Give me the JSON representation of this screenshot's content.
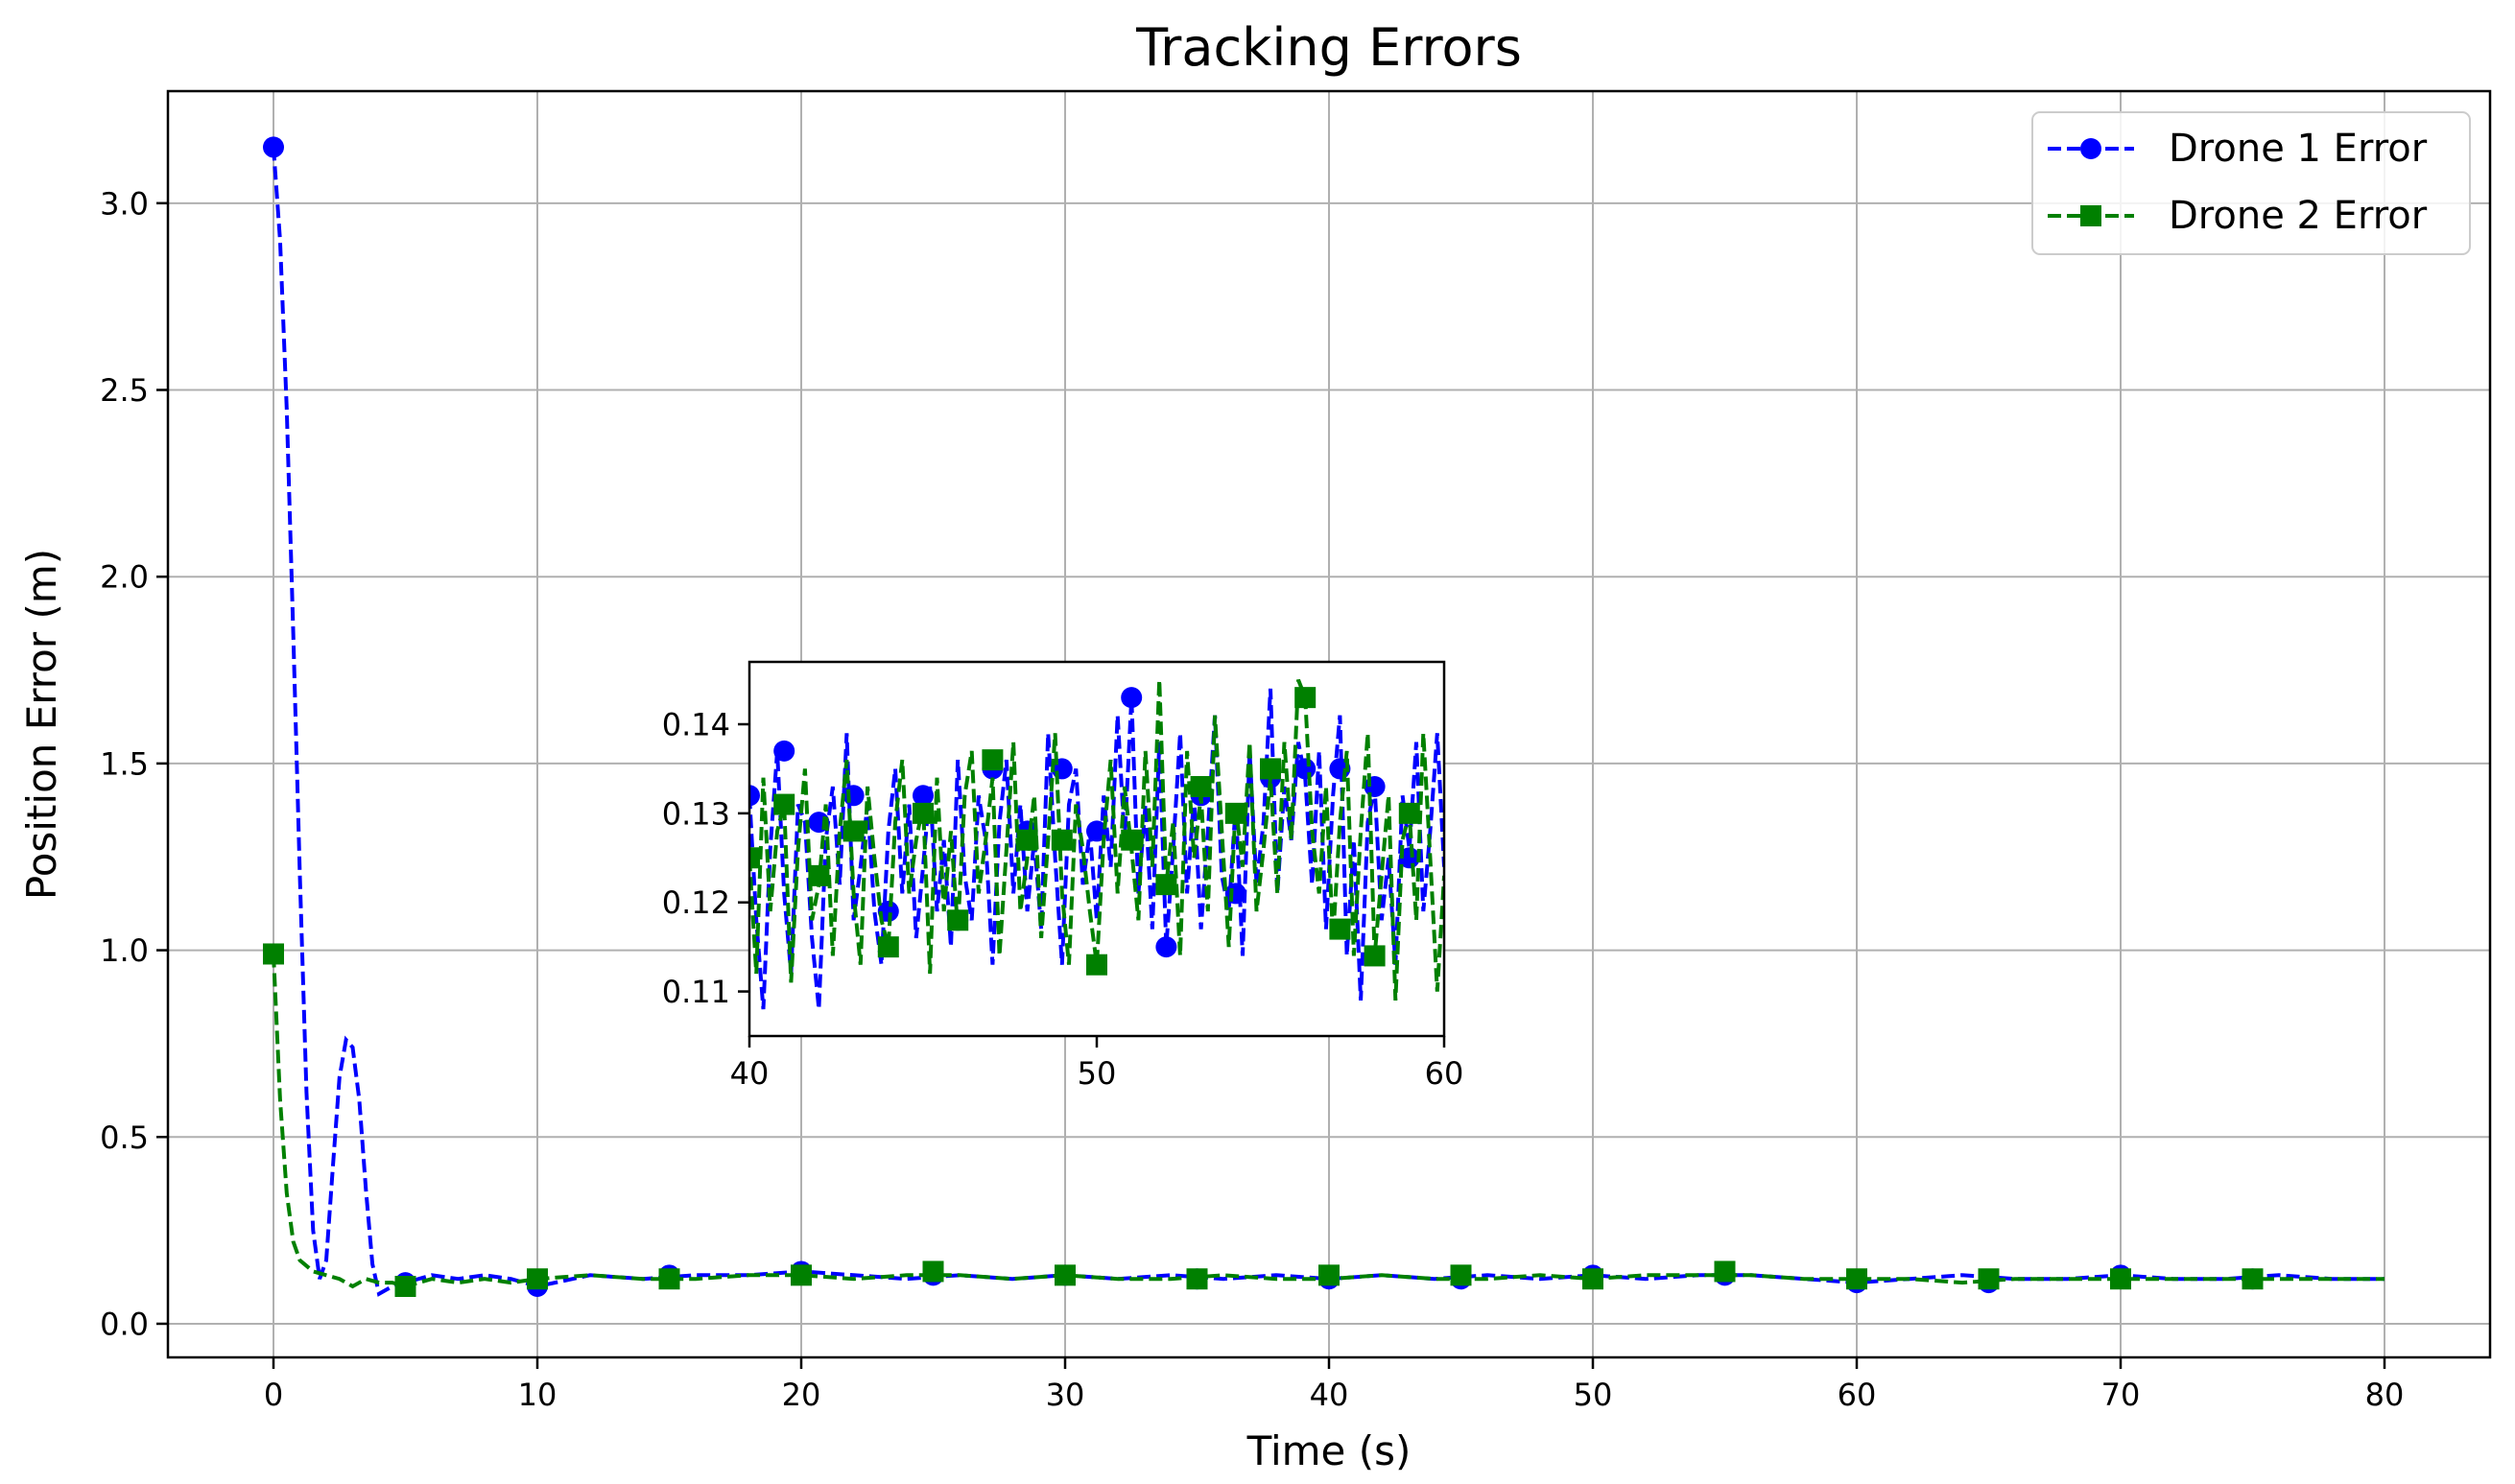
{
  "chart_data": {
    "type": "line",
    "title": "Tracking Errors",
    "xlabel": "Time (s)",
    "ylabel": "Position Error (m)",
    "xlim": [
      -4,
      84
    ],
    "ylim": [
      -0.09,
      3.3
    ],
    "xticks": [
      0,
      10,
      20,
      30,
      40,
      50,
      60,
      70,
      80
    ],
    "yticks": [
      0.0,
      0.5,
      1.0,
      1.5,
      2.0,
      2.5,
      3.0
    ],
    "xtick_labels": [
      "0",
      "10",
      "20",
      "30",
      "40",
      "50",
      "60",
      "70",
      "80"
    ],
    "ytick_labels": [
      "0.0",
      "0.5",
      "1.0",
      "1.5",
      "2.0",
      "2.5",
      "3.0"
    ],
    "grid": true,
    "legend_position": "top-right",
    "series": [
      {
        "name": "Drone 1 Error",
        "color": "#0000ff",
        "linestyle": "dashed",
        "marker": "circle",
        "x": [
          0,
          0.25,
          0.5,
          0.75,
          1.0,
          1.25,
          1.5,
          1.75,
          2.0,
          2.25,
          2.5,
          2.75,
          3.0,
          3.25,
          3.5,
          3.75,
          4.0,
          4.25,
          4.5,
          5,
          6,
          7,
          8,
          9,
          10,
          12,
          14,
          16,
          18,
          20,
          22,
          24,
          26,
          28,
          30,
          32,
          34,
          36,
          38,
          40,
          42,
          44,
          46,
          48,
          50,
          52,
          54,
          56,
          58,
          60,
          62,
          64,
          66,
          68,
          70,
          72,
          74,
          76,
          78,
          80
        ],
        "y": [
          3.15,
          2.9,
          2.45,
          1.85,
          1.2,
          0.62,
          0.25,
          0.12,
          0.17,
          0.42,
          0.66,
          0.76,
          0.74,
          0.6,
          0.36,
          0.16,
          0.08,
          0.09,
          0.1,
          0.11,
          0.13,
          0.12,
          0.13,
          0.12,
          0.1,
          0.13,
          0.12,
          0.13,
          0.13,
          0.14,
          0.13,
          0.12,
          0.13,
          0.12,
          0.13,
          0.12,
          0.13,
          0.12,
          0.13,
          0.12,
          0.13,
          0.12,
          0.13,
          0.12,
          0.13,
          0.12,
          0.13,
          0.13,
          0.12,
          0.11,
          0.12,
          0.13,
          0.12,
          0.12,
          0.13,
          0.12,
          0.12,
          0.13,
          0.12,
          0.12
        ],
        "marker_x": [
          0,
          5,
          10,
          15,
          20,
          25,
          30,
          35,
          40,
          45,
          50,
          55,
          60,
          65,
          70,
          75
        ],
        "marker_y": [
          3.15,
          0.11,
          0.1,
          0.13,
          0.14,
          0.13,
          0.13,
          0.12,
          0.12,
          0.12,
          0.13,
          0.13,
          0.11,
          0.11,
          0.13,
          0.12
        ]
      },
      {
        "name": "Drone 2 Error",
        "color": "#008000",
        "linestyle": "dashed",
        "marker": "square",
        "x": [
          0,
          0.25,
          0.5,
          0.75,
          1.0,
          1.5,
          2.0,
          2.5,
          3.0,
          3.5,
          4.0,
          4.5,
          5,
          6,
          7,
          8,
          9,
          10,
          12,
          14,
          16,
          18,
          20,
          22,
          24,
          26,
          28,
          30,
          32,
          34,
          36,
          38,
          40,
          42,
          44,
          46,
          48,
          50,
          52,
          54,
          56,
          58,
          60,
          62,
          64,
          66,
          68,
          70,
          72,
          74,
          76,
          78,
          80
        ],
        "y": [
          0.99,
          0.6,
          0.35,
          0.22,
          0.17,
          0.14,
          0.13,
          0.12,
          0.1,
          0.12,
          0.11,
          0.11,
          0.1,
          0.12,
          0.11,
          0.12,
          0.11,
          0.12,
          0.13,
          0.12,
          0.12,
          0.13,
          0.13,
          0.12,
          0.13,
          0.13,
          0.12,
          0.13,
          0.12,
          0.12,
          0.13,
          0.12,
          0.12,
          0.13,
          0.12,
          0.12,
          0.13,
          0.12,
          0.13,
          0.13,
          0.13,
          0.12,
          0.12,
          0.12,
          0.11,
          0.12,
          0.12,
          0.12,
          0.12,
          0.12,
          0.12,
          0.12,
          0.12
        ],
        "marker_x": [
          0,
          5,
          10,
          15,
          20,
          25,
          30,
          35,
          40,
          45,
          50,
          55,
          60,
          65,
          70,
          75
        ],
        "marker_y": [
          0.99,
          0.1,
          0.12,
          0.12,
          0.13,
          0.14,
          0.13,
          0.12,
          0.13,
          0.13,
          0.12,
          0.14,
          0.12,
          0.12,
          0.12,
          0.12
        ]
      }
    ],
    "inset": {
      "type": "line",
      "xlim": [
        40,
        60
      ],
      "ylim": [
        0.105,
        0.147
      ],
      "xticks": [
        40,
        50,
        60
      ],
      "yticks": [
        0.11,
        0.12,
        0.13,
        0.14
      ],
      "xtick_labels": [
        "40",
        "50",
        "60"
      ],
      "ytick_labels": [
        "0.11",
        "0.12",
        "0.13",
        "0.14"
      ],
      "grid": false,
      "series": [
        {
          "name": "Drone 1 Error",
          "color": "#0000ff",
          "linestyle": "dashed",
          "marker": "circle",
          "x": [
            40.0,
            40.2,
            40.4,
            40.6,
            40.8,
            41.0,
            41.2,
            41.4,
            41.6,
            41.8,
            42.0,
            42.2,
            42.4,
            42.6,
            42.8,
            43.0,
            43.2,
            43.4,
            43.6,
            43.8,
            44.0,
            44.2,
            44.4,
            44.6,
            44.8,
            45.0,
            45.2,
            45.4,
            45.6,
            45.8,
            46.0,
            46.2,
            46.4,
            46.6,
            46.8,
            47.0,
            47.2,
            47.4,
            47.6,
            47.8,
            48.0,
            48.2,
            48.4,
            48.6,
            48.8,
            49.0,
            49.2,
            49.4,
            49.6,
            49.8,
            50.0,
            50.2,
            50.4,
            50.6,
            50.8,
            51.0,
            51.2,
            51.4,
            51.6,
            51.8,
            52.0,
            52.2,
            52.4,
            52.6,
            52.8,
            53.0,
            53.2,
            53.4,
            53.6,
            53.8,
            54.0,
            54.2,
            54.4,
            54.6,
            54.8,
            55.0,
            55.2,
            55.4,
            55.6,
            55.8,
            56.0,
            56.2,
            56.4,
            56.6,
            56.8,
            57.0,
            57.2,
            57.4,
            57.6,
            57.8,
            58.0,
            58.2,
            58.4,
            58.6,
            58.8,
            59.0,
            59.2,
            59.4,
            59.6,
            59.8,
            60.0
          ],
          "y": [
            0.132,
            0.118,
            0.108,
            0.126,
            0.137,
            0.121,
            0.112,
            0.131,
            0.129,
            0.116,
            0.108,
            0.127,
            0.133,
            0.122,
            0.139,
            0.118,
            0.124,
            0.131,
            0.119,
            0.113,
            0.128,
            0.135,
            0.121,
            0.131,
            0.116,
            0.124,
            0.133,
            0.119,
            0.127,
            0.115,
            0.136,
            0.123,
            0.118,
            0.132,
            0.127,
            0.113,
            0.129,
            0.136,
            0.121,
            0.131,
            0.119,
            0.127,
            0.117,
            0.139,
            0.125,
            0.113,
            0.131,
            0.135,
            0.122,
            0.128,
            0.118,
            0.132,
            0.124,
            0.141,
            0.127,
            0.143,
            0.121,
            0.131,
            0.117,
            0.138,
            0.115,
            0.126,
            0.139,
            0.121,
            0.132,
            0.117,
            0.128,
            0.141,
            0.123,
            0.119,
            0.131,
            0.114,
            0.137,
            0.122,
            0.129,
            0.144,
            0.121,
            0.133,
            0.127,
            0.138,
            0.134,
            0.122,
            0.137,
            0.117,
            0.132,
            0.141,
            0.114,
            0.127,
            0.109,
            0.129,
            0.133,
            0.118,
            0.125,
            0.113,
            0.132,
            0.126,
            0.138,
            0.119,
            0.128,
            0.139,
            0.124
          ],
          "marker_x": [
            40.0,
            41.0,
            42.0,
            43.0,
            44.0,
            45.0,
            46.0,
            47.0,
            48.0,
            49.0,
            50.0,
            51.0,
            52.0,
            53.0,
            54.0,
            55.0,
            56.0,
            57.0,
            58.0,
            59.0
          ],
          "marker_y": [
            0.132,
            0.137,
            0.129,
            0.132,
            0.119,
            0.132,
            0.118,
            0.135,
            0.128,
            0.135,
            0.128,
            0.143,
            0.115,
            0.132,
            0.121,
            0.134,
            0.135,
            0.135,
            0.133,
            0.125
          ]
        },
        {
          "name": "Drone 2 Error",
          "color": "#008000",
          "linestyle": "dashed",
          "marker": "square",
          "x": [
            40.0,
            40.2,
            40.4,
            40.6,
            40.8,
            41.0,
            41.2,
            41.4,
            41.6,
            41.8,
            42.0,
            42.2,
            42.4,
            42.6,
            42.8,
            43.0,
            43.2,
            43.4,
            43.6,
            43.8,
            44.0,
            44.2,
            44.4,
            44.6,
            44.8,
            45.0,
            45.2,
            45.4,
            45.6,
            45.8,
            46.0,
            46.2,
            46.4,
            46.6,
            46.8,
            47.0,
            47.2,
            47.4,
            47.6,
            47.8,
            48.0,
            48.2,
            48.4,
            48.6,
            48.8,
            49.0,
            49.2,
            49.4,
            49.6,
            49.8,
            50.0,
            50.2,
            50.4,
            50.6,
            50.8,
            51.0,
            51.2,
            51.4,
            51.6,
            51.8,
            52.0,
            52.2,
            52.4,
            52.6,
            52.8,
            53.0,
            53.2,
            53.4,
            53.6,
            53.8,
            54.0,
            54.2,
            54.4,
            54.6,
            54.8,
            55.0,
            55.2,
            55.4,
            55.6,
            55.8,
            56.0,
            56.2,
            56.4,
            56.6,
            56.8,
            57.0,
            57.2,
            57.4,
            57.6,
            57.8,
            58.0,
            58.2,
            58.4,
            58.6,
            58.8,
            59.0,
            59.2,
            59.4,
            59.6,
            59.8,
            60.0
          ],
          "y": [
            0.125,
            0.112,
            0.134,
            0.119,
            0.128,
            0.131,
            0.111,
            0.126,
            0.135,
            0.118,
            0.122,
            0.131,
            0.114,
            0.128,
            0.136,
            0.121,
            0.113,
            0.133,
            0.125,
            0.118,
            0.115,
            0.129,
            0.136,
            0.121,
            0.127,
            0.131,
            0.112,
            0.134,
            0.119,
            0.128,
            0.117,
            0.132,
            0.137,
            0.121,
            0.127,
            0.134,
            0.114,
            0.126,
            0.138,
            0.119,
            0.125,
            0.132,
            0.116,
            0.127,
            0.139,
            0.121,
            0.113,
            0.131,
            0.126,
            0.119,
            0.113,
            0.127,
            0.136,
            0.121,
            0.133,
            0.126,
            0.118,
            0.137,
            0.124,
            0.145,
            0.122,
            0.129,
            0.114,
            0.137,
            0.125,
            0.132,
            0.119,
            0.141,
            0.128,
            0.115,
            0.131,
            0.124,
            0.138,
            0.119,
            0.126,
            0.134,
            0.121,
            0.138,
            0.127,
            0.145,
            0.143,
            0.128,
            0.121,
            0.133,
            0.116,
            0.129,
            0.137,
            0.114,
            0.128,
            0.139,
            0.114,
            0.123,
            0.132,
            0.109,
            0.127,
            0.13,
            0.118,
            0.139,
            0.125,
            0.11,
            0.123
          ],
          "marker_x": [
            40.0,
            41.0,
            42.0,
            43.0,
            44.0,
            45.0,
            46.0,
            47.0,
            48.0,
            49.0,
            50.0,
            51.0,
            52.0,
            53.0,
            54.0,
            55.0,
            56.0,
            57.0,
            58.0,
            59.0
          ],
          "marker_y": [
            0.125,
            0.131,
            0.123,
            0.128,
            0.115,
            0.13,
            0.118,
            0.136,
            0.127,
            0.127,
            0.113,
            0.127,
            0.122,
            0.133,
            0.13,
            0.135,
            0.143,
            0.117,
            0.114,
            0.13
          ]
        }
      ]
    }
  }
}
